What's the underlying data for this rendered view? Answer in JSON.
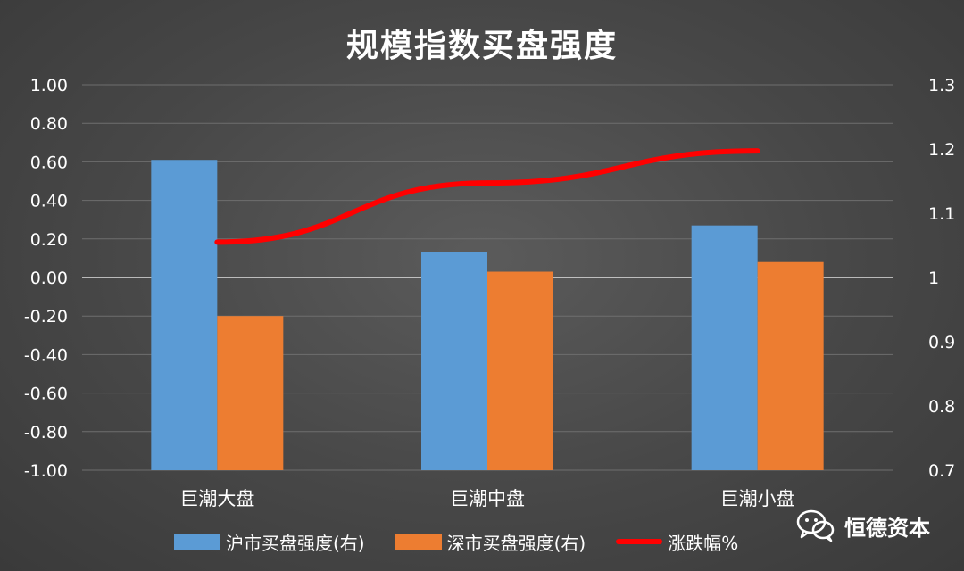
{
  "chart_data": {
    "type": "bar",
    "title": "规模指数买盘强度",
    "categories": [
      "巨潮大盘",
      "巨潮中盘",
      "巨潮小盘"
    ],
    "series": [
      {
        "name": "沪市买盘强度(右)",
        "type": "bar",
        "axis": "left",
        "color": "#5b9bd5",
        "values": [
          0.61,
          0.13,
          0.27
        ]
      },
      {
        "name": "深市买盘强度(右)",
        "type": "bar",
        "axis": "left",
        "color": "#ed7d31",
        "values": [
          -0.2,
          0.03,
          0.08
        ]
      },
      {
        "name": "涨跌幅%",
        "type": "line",
        "axis": "right",
        "color": "#ff0000",
        "values": [
          1.055,
          1.147,
          1.197
        ]
      }
    ],
    "ylim": [
      -1.0,
      1.0
    ],
    "y_ticks": [
      "1.00",
      "0.80",
      "0.60",
      "0.40",
      "0.20",
      "0.00",
      "-0.20",
      "-0.40",
      "-0.60",
      "-0.80",
      "-1.00"
    ],
    "y2lim": [
      0.7,
      1.3
    ],
    "y2_ticks": [
      "1.3",
      "1.2",
      "1.1",
      "1",
      "0.9",
      "0.8",
      "0.7"
    ],
    "grid": true,
    "legend_position": "bottom"
  },
  "watermark": {
    "text": "恒德资本",
    "icon": "wechat-icon"
  }
}
